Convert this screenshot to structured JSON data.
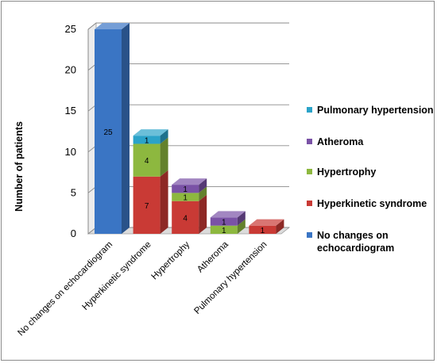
{
  "chart_data": {
    "type": "bar",
    "stacked": true,
    "three_d": true,
    "categories": [
      "No changes on echocardiogram",
      "Hyperkinetic syndrome",
      "Hypertrophy",
      "Atheroma",
      "Pulmonary hypertension"
    ],
    "series": [
      {
        "name": "No changes on echocardiogram",
        "color": "#3a75c4",
        "values": [
          25,
          0,
          0,
          0,
          0
        ]
      },
      {
        "name": "Hyperkinetic syndrome",
        "color": "#c93a35",
        "values": [
          0,
          7,
          4,
          0,
          1
        ]
      },
      {
        "name": "Hypertrophy",
        "color": "#8db83f",
        "values": [
          0,
          4,
          1,
          1,
          0
        ]
      },
      {
        "name": "Atheroma",
        "color": "#7a52a6",
        "values": [
          0,
          0,
          1,
          1,
          0
        ]
      },
      {
        "name": "Pulmonary hypertension",
        "color": "#2ba3c9",
        "values": [
          0,
          1,
          0,
          0,
          0
        ]
      }
    ],
    "ylabel": "Number of patients",
    "xlabel": "",
    "title": "",
    "ylim": [
      0,
      25
    ],
    "yticks": [
      "0",
      "5",
      "10",
      "15",
      "20",
      "25"
    ],
    "grid": true,
    "legend": {
      "position": "right",
      "order": [
        "Pulmonary hypertension",
        "Atheroma",
        "Hypertrophy",
        "Hyperkinetic syndrome",
        "No changes on echocardiogram"
      ]
    }
  }
}
